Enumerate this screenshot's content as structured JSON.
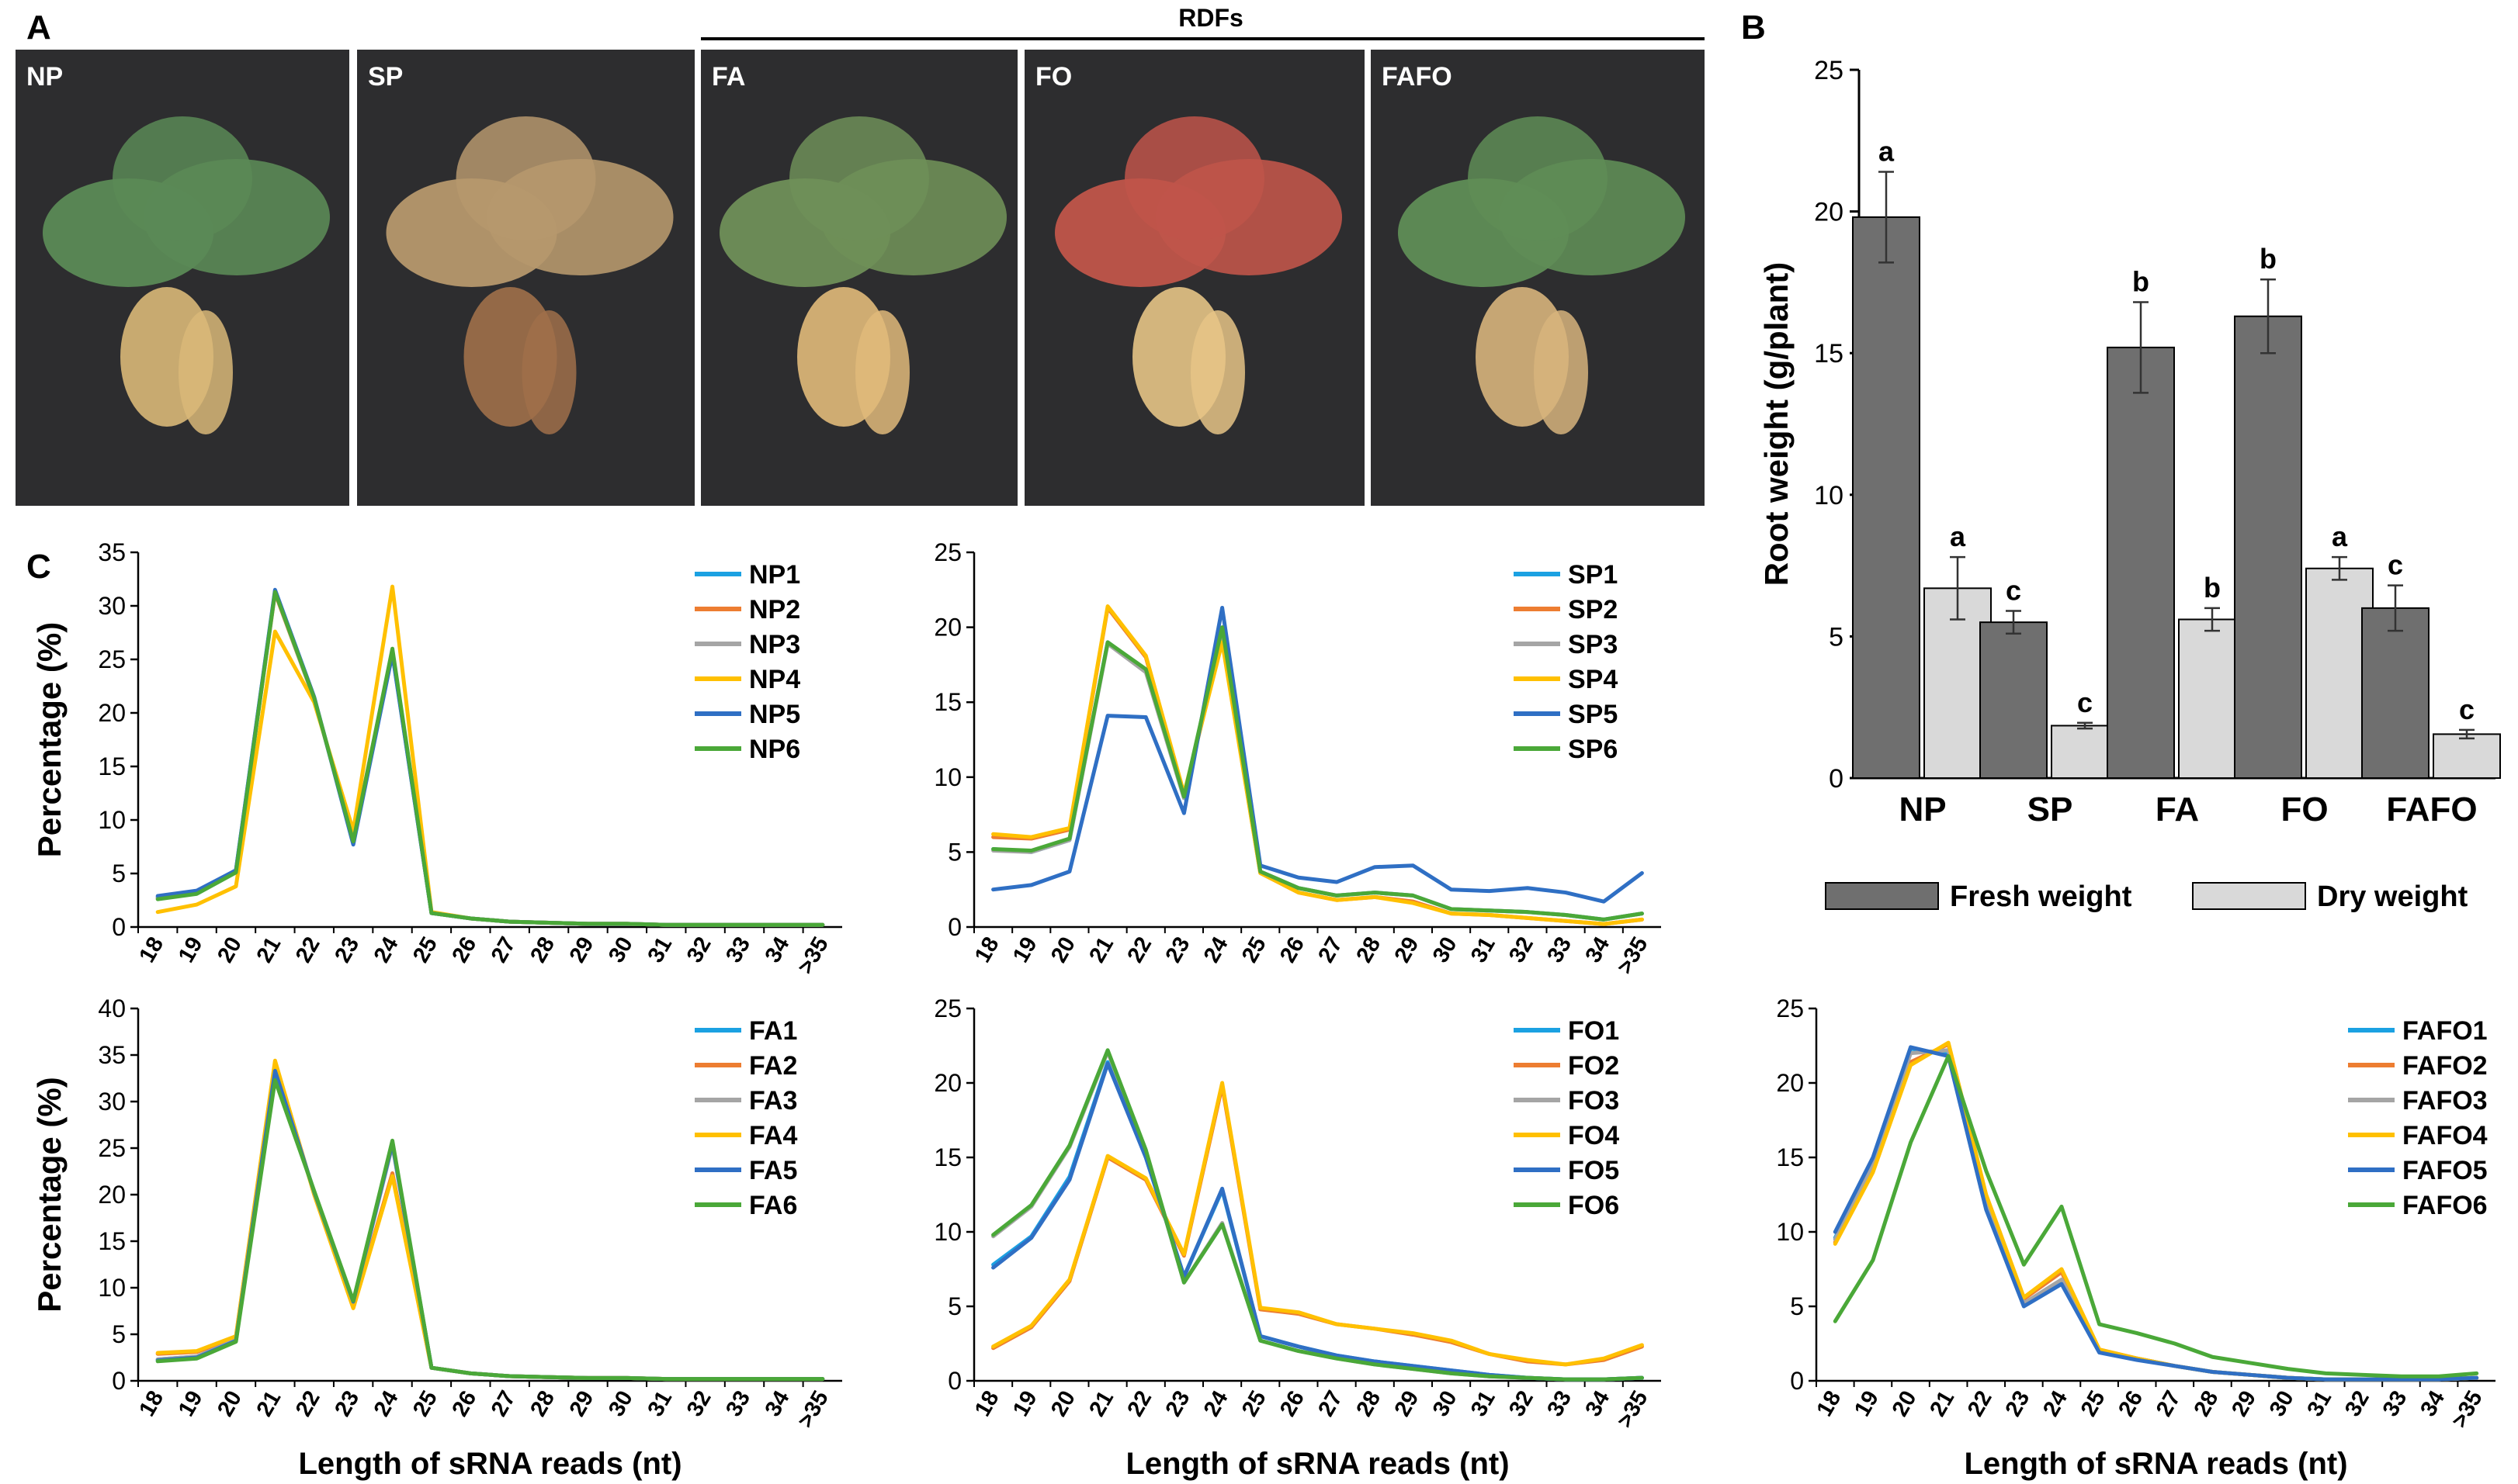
{
  "panel_labels": {
    "a": "A",
    "b": "B",
    "c": "C"
  },
  "photos": {
    "group_label": "RDFs",
    "labels": [
      "NP",
      "SP",
      "FA",
      "FO",
      "FAFO"
    ]
  },
  "colors": {
    "series": [
      "#1ba1e2",
      "#ed7d31",
      "#a5a5a5",
      "#ffc000",
      "#2f6fc4",
      "#4aa838"
    ],
    "fresh": "#6f6f6f",
    "dry": "#d9d9d9",
    "background_photo": "#2d2d2f"
  },
  "chart_data": [
    {
      "id": "B",
      "type": "bar",
      "title": "",
      "ylabel": "Root weight (g/plant)",
      "xlabel": "",
      "categories": [
        "NP",
        "SP",
        "FA",
        "FO",
        "FAFO"
      ],
      "ylim": [
        0,
        25
      ],
      "yticks": [
        0,
        5,
        10,
        15,
        20,
        25
      ],
      "legend_position": "bottom",
      "series": [
        {
          "name": "Fresh weight",
          "values": [
            19.8,
            5.5,
            15.2,
            16.3,
            6.0
          ],
          "errors": [
            1.6,
            0.4,
            1.6,
            1.3,
            0.8
          ],
          "letters": [
            "a",
            "c",
            "b",
            "b",
            "c"
          ]
        },
        {
          "name": "Dry weight",
          "values": [
            6.7,
            1.85,
            5.6,
            7.4,
            1.55
          ],
          "errors": [
            1.1,
            0.1,
            0.4,
            0.4,
            0.15
          ],
          "letters": [
            "a",
            "c",
            "b",
            "a",
            "c"
          ]
        }
      ]
    },
    {
      "id": "C-NP",
      "type": "line",
      "ylabel": "Percentage (%)",
      "xlabel": "",
      "categories": [
        "18",
        "19",
        "20",
        "21",
        "22",
        "23",
        "24",
        "25",
        "26",
        "27",
        "28",
        "29",
        "30",
        "31",
        "32",
        "33",
        "34",
        ">35"
      ],
      "ylim": [
        0,
        35
      ],
      "yticks": [
        0,
        5,
        10,
        15,
        20,
        25,
        30,
        35
      ],
      "legend_position": "top-right",
      "series": [
        {
          "name": "NP1",
          "values": [
            2.8,
            3.3,
            5.3,
            31.4,
            21.4,
            8.1,
            25.6,
            1.3,
            0.8,
            0.5,
            0.4,
            0.3,
            0.3,
            0.2,
            0.2,
            0.2,
            0.2,
            0.2
          ]
        },
        {
          "name": "NP2",
          "values": [
            2.7,
            3.2,
            5.2,
            31.2,
            21.3,
            8.2,
            25.8,
            1.3,
            0.8,
            0.5,
            0.4,
            0.3,
            0.3,
            0.2,
            0.2,
            0.2,
            0.2,
            0.2
          ]
        },
        {
          "name": "NP3",
          "values": [
            2.7,
            3.2,
            5.2,
            31.3,
            21.3,
            8.1,
            25.7,
            1.3,
            0.8,
            0.5,
            0.4,
            0.3,
            0.3,
            0.2,
            0.2,
            0.2,
            0.2,
            0.2
          ]
        },
        {
          "name": "NP4",
          "values": [
            1.4,
            2.1,
            3.8,
            27.6,
            21.0,
            9.0,
            31.8,
            1.4,
            0.8,
            0.5,
            0.4,
            0.3,
            0.3,
            0.2,
            0.2,
            0.2,
            0.2,
            0.2
          ]
        },
        {
          "name": "NP5",
          "values": [
            2.9,
            3.4,
            5.3,
            31.5,
            21.5,
            7.7,
            25.5,
            1.3,
            0.8,
            0.5,
            0.4,
            0.3,
            0.3,
            0.2,
            0.2,
            0.2,
            0.2,
            0.2
          ]
        },
        {
          "name": "NP6",
          "values": [
            2.6,
            3.1,
            5.1,
            31.3,
            21.4,
            8.0,
            26.0,
            1.3,
            0.8,
            0.5,
            0.4,
            0.3,
            0.3,
            0.2,
            0.2,
            0.2,
            0.2,
            0.2
          ]
        }
      ]
    },
    {
      "id": "C-SP",
      "type": "line",
      "ylabel": "",
      "xlabel": "",
      "categories": [
        "18",
        "19",
        "20",
        "21",
        "22",
        "23",
        "24",
        "25",
        "26",
        "27",
        "28",
        "29",
        "30",
        "31",
        "32",
        "33",
        "34",
        ">35"
      ],
      "ylim": [
        0,
        25
      ],
      "yticks": [
        0,
        5,
        10,
        15,
        20,
        25
      ],
      "legend_position": "top-right",
      "series": [
        {
          "name": "SP1",
          "values": [
            5.2,
            5.0,
            5.8,
            19.0,
            17.1,
            8.6,
            19.9,
            3.7,
            2.6,
            2.1,
            2.3,
            2.1,
            1.2,
            1.1,
            1.0,
            0.8,
            0.5,
            0.9
          ]
        },
        {
          "name": "SP2",
          "values": [
            6.0,
            5.9,
            6.5,
            21.3,
            18.0,
            8.8,
            19.2,
            3.6,
            2.3,
            1.8,
            2.0,
            1.7,
            0.9,
            0.8,
            0.6,
            0.4,
            0.2,
            0.5
          ]
        },
        {
          "name": "SP3",
          "values": [
            5.1,
            5.0,
            5.8,
            18.9,
            17.0,
            8.6,
            19.8,
            3.7,
            2.6,
            2.1,
            2.3,
            2.1,
            1.2,
            1.1,
            1.0,
            0.8,
            0.5,
            0.9
          ]
        },
        {
          "name": "SP4",
          "values": [
            6.2,
            6.0,
            6.6,
            21.4,
            18.1,
            8.9,
            19.0,
            3.6,
            2.3,
            1.8,
            2.0,
            1.6,
            0.9,
            0.8,
            0.6,
            0.4,
            0.2,
            0.5
          ]
        },
        {
          "name": "SP5",
          "values": [
            2.5,
            2.8,
            3.7,
            14.1,
            14.0,
            7.6,
            21.3,
            4.1,
            3.3,
            3.0,
            4.0,
            4.1,
            2.5,
            2.4,
            2.6,
            2.3,
            1.7,
            3.6
          ]
        },
        {
          "name": "SP6",
          "values": [
            5.2,
            5.1,
            5.9,
            19.0,
            17.2,
            8.7,
            20.0,
            3.7,
            2.6,
            2.1,
            2.3,
            2.1,
            1.2,
            1.1,
            1.0,
            0.8,
            0.5,
            0.9
          ]
        }
      ]
    },
    {
      "id": "C-FA",
      "type": "line",
      "ylabel": "Percentage (%)",
      "xlabel": "Length of sRNA reads (nt)",
      "categories": [
        "18",
        "19",
        "20",
        "21",
        "22",
        "23",
        "24",
        "25",
        "26",
        "27",
        "28",
        "29",
        "30",
        "31",
        "32",
        "33",
        "34",
        ">35"
      ],
      "ylim": [
        0,
        40
      ],
      "yticks": [
        0,
        5,
        10,
        15,
        20,
        25,
        30,
        35,
        40
      ],
      "legend_position": "top-right",
      "series": [
        {
          "name": "FA1",
          "values": [
            2.3,
            2.6,
            4.4,
            33.0,
            20.3,
            8.4,
            25.4,
            1.4,
            0.8,
            0.5,
            0.4,
            0.3,
            0.3,
            0.2,
            0.2,
            0.2,
            0.2,
            0.2
          ]
        },
        {
          "name": "FA2",
          "values": [
            2.9,
            3.1,
            4.7,
            34.2,
            20.1,
            7.9,
            22.3,
            1.4,
            0.8,
            0.5,
            0.4,
            0.3,
            0.3,
            0.2,
            0.2,
            0.2,
            0.2,
            0.2
          ]
        },
        {
          "name": "FA3",
          "values": [
            2.3,
            2.6,
            4.4,
            33.0,
            20.3,
            8.4,
            25.3,
            1.4,
            0.8,
            0.5,
            0.4,
            0.3,
            0.3,
            0.2,
            0.2,
            0.2,
            0.2,
            0.2
          ]
        },
        {
          "name": "FA4",
          "values": [
            3.0,
            3.2,
            4.8,
            34.4,
            20.0,
            7.8,
            22.0,
            1.4,
            0.8,
            0.5,
            0.4,
            0.3,
            0.3,
            0.2,
            0.2,
            0.2,
            0.2,
            0.2
          ]
        },
        {
          "name": "FA5",
          "values": [
            2.2,
            2.5,
            4.3,
            33.3,
            20.3,
            8.5,
            25.5,
            1.4,
            0.8,
            0.5,
            0.4,
            0.3,
            0.3,
            0.2,
            0.2,
            0.2,
            0.2,
            0.2
          ]
        },
        {
          "name": "FA6",
          "values": [
            2.1,
            2.4,
            4.2,
            32.3,
            20.4,
            8.6,
            25.8,
            1.4,
            0.8,
            0.5,
            0.4,
            0.3,
            0.3,
            0.2,
            0.2,
            0.2,
            0.2,
            0.2
          ]
        }
      ]
    },
    {
      "id": "C-FO",
      "type": "line",
      "ylabel": "",
      "xlabel": "Length of sRNA reads (nt)",
      "categories": [
        "18",
        "19",
        "20",
        "21",
        "22",
        "23",
        "24",
        "25",
        "26",
        "27",
        "28",
        "29",
        "30",
        "31",
        "32",
        "33",
        "34",
        ">35"
      ],
      "ylim": [
        0,
        25
      ],
      "yticks": [
        0,
        5,
        10,
        15,
        20,
        25
      ],
      "legend_position": "top-right",
      "series": [
        {
          "name": "FO1",
          "values": [
            7.8,
            9.7,
            13.7,
            21.4,
            15.0,
            7.0,
            12.8,
            3.0,
            2.3,
            1.7,
            1.3,
            1.0,
            0.7,
            0.4,
            0.2,
            0.1,
            0.1,
            0.2
          ]
        },
        {
          "name": "FO2",
          "values": [
            2.2,
            3.6,
            6.7,
            15.0,
            13.5,
            8.4,
            19.8,
            4.8,
            4.5,
            3.8,
            3.5,
            3.1,
            2.6,
            1.8,
            1.3,
            1.1,
            1.4,
            2.3
          ]
        },
        {
          "name": "FO3",
          "values": [
            9.7,
            11.7,
            15.7,
            22.1,
            15.4,
            6.6,
            10.6,
            2.7,
            2.0,
            1.5,
            1.1,
            0.8,
            0.5,
            0.3,
            0.2,
            0.1,
            0.1,
            0.2
          ]
        },
        {
          "name": "FO4",
          "values": [
            2.3,
            3.7,
            6.8,
            15.1,
            13.6,
            8.5,
            20.0,
            4.9,
            4.6,
            3.8,
            3.5,
            3.2,
            2.7,
            1.8,
            1.4,
            1.1,
            1.5,
            2.4
          ]
        },
        {
          "name": "FO5",
          "values": [
            7.6,
            9.6,
            13.5,
            21.3,
            15.0,
            7.0,
            12.9,
            3.0,
            2.3,
            1.7,
            1.3,
            1.0,
            0.7,
            0.4,
            0.2,
            0.1,
            0.1,
            0.2
          ]
        },
        {
          "name": "FO6",
          "values": [
            9.8,
            11.8,
            15.8,
            22.2,
            15.5,
            6.6,
            10.5,
            2.7,
            2.0,
            1.5,
            1.1,
            0.8,
            0.5,
            0.3,
            0.2,
            0.1,
            0.1,
            0.2
          ]
        }
      ]
    },
    {
      "id": "C-FAFO",
      "type": "line",
      "ylabel": "",
      "xlabel": "Length of sRNA reads (nt)",
      "categories": [
        "18",
        "19",
        "20",
        "21",
        "22",
        "23",
        "24",
        "25",
        "26",
        "27",
        "28",
        "29",
        "30",
        "31",
        "32",
        "33",
        "34",
        ">35"
      ],
      "ylim": [
        0,
        25
      ],
      "yticks": [
        0,
        5,
        10,
        15,
        20,
        25
      ],
      "legend_position": "top-right",
      "series": [
        {
          "name": "FAFO1",
          "values": [
            9.6,
            14.6,
            22.3,
            21.9,
            11.6,
            5.1,
            6.6,
            2.0,
            1.5,
            1.0,
            0.6,
            0.4,
            0.2,
            0.1,
            0.1,
            0.1,
            0.1,
            0.2
          ]
        },
        {
          "name": "FAFO2",
          "values": [
            9.3,
            14.2,
            21.4,
            22.6,
            12.3,
            5.5,
            7.3,
            2.1,
            1.5,
            1.0,
            0.6,
            0.4,
            0.2,
            0.1,
            0.1,
            0.1,
            0.1,
            0.2
          ]
        },
        {
          "name": "FAFO3",
          "values": [
            9.5,
            14.5,
            22.0,
            22.2,
            11.8,
            5.2,
            6.8,
            2.0,
            1.5,
            1.0,
            0.6,
            0.4,
            0.2,
            0.1,
            0.1,
            0.1,
            0.1,
            0.2
          ]
        },
        {
          "name": "FAFO4",
          "values": [
            9.2,
            14.0,
            21.2,
            22.7,
            12.5,
            5.6,
            7.5,
            2.1,
            1.5,
            1.0,
            0.6,
            0.4,
            0.2,
            0.1,
            0.1,
            0.1,
            0.1,
            0.2
          ]
        },
        {
          "name": "FAFO5",
          "values": [
            10.0,
            15.0,
            22.4,
            21.8,
            11.5,
            5.0,
            6.5,
            1.9,
            1.4,
            1.0,
            0.6,
            0.4,
            0.2,
            0.1,
            0.1,
            0.1,
            0.1,
            0.2
          ]
        },
        {
          "name": "FAFO6",
          "values": [
            4.0,
            8.1,
            16.0,
            21.8,
            14.1,
            7.8,
            11.7,
            3.8,
            3.2,
            2.5,
            1.6,
            1.2,
            0.8,
            0.5,
            0.4,
            0.3,
            0.3,
            0.5
          ]
        }
      ]
    }
  ]
}
